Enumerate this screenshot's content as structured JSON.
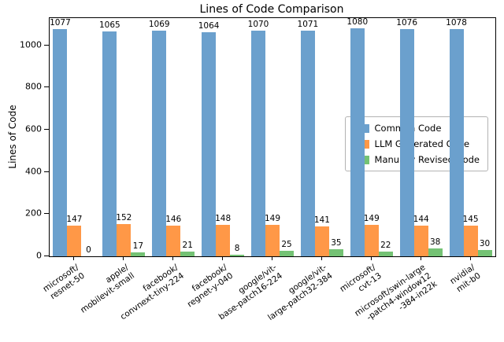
{
  "chart_data": {
    "type": "bar",
    "title": "Lines of Code Comparison",
    "xlabel": "",
    "ylabel": "Lines of Code",
    "ylim": [
      0,
      1130
    ],
    "yticks": [
      0,
      200,
      400,
      600,
      800,
      1000
    ],
    "grid": false,
    "legend_position": "center right",
    "categories": [
      [
        "microsoft/",
        "resnet-50"
      ],
      [
        "apple/",
        "mobilevit-small"
      ],
      [
        "facebook/",
        "convnext-tiny-224"
      ],
      [
        "facebook/",
        "regnet-y-040"
      ],
      [
        "google/vit-",
        "base-patch16-224"
      ],
      [
        "google/vit-",
        "large-patch32-384"
      ],
      [
        "microsoft/",
        "cvt-13"
      ],
      [
        "microsoft/swin-large",
        "-patch4-window12",
        "-384-in22k"
      ],
      [
        "nvidia/",
        "mit-b0"
      ]
    ],
    "series": [
      {
        "name": "Common Code",
        "color": "#6ba0cd",
        "values": [
          1077,
          1065,
          1069,
          1064,
          1070,
          1071,
          1080,
          1076,
          1078
        ]
      },
      {
        "name": "LLM Generated Code",
        "color": "#ff9847",
        "values": [
          147,
          152,
          146,
          148,
          149,
          141,
          149,
          144,
          145
        ]
      },
      {
        "name": "Manually Revised Code",
        "color": "#74c274",
        "values": [
          0,
          17,
          21,
          8,
          25,
          35,
          22,
          38,
          30
        ]
      }
    ]
  }
}
